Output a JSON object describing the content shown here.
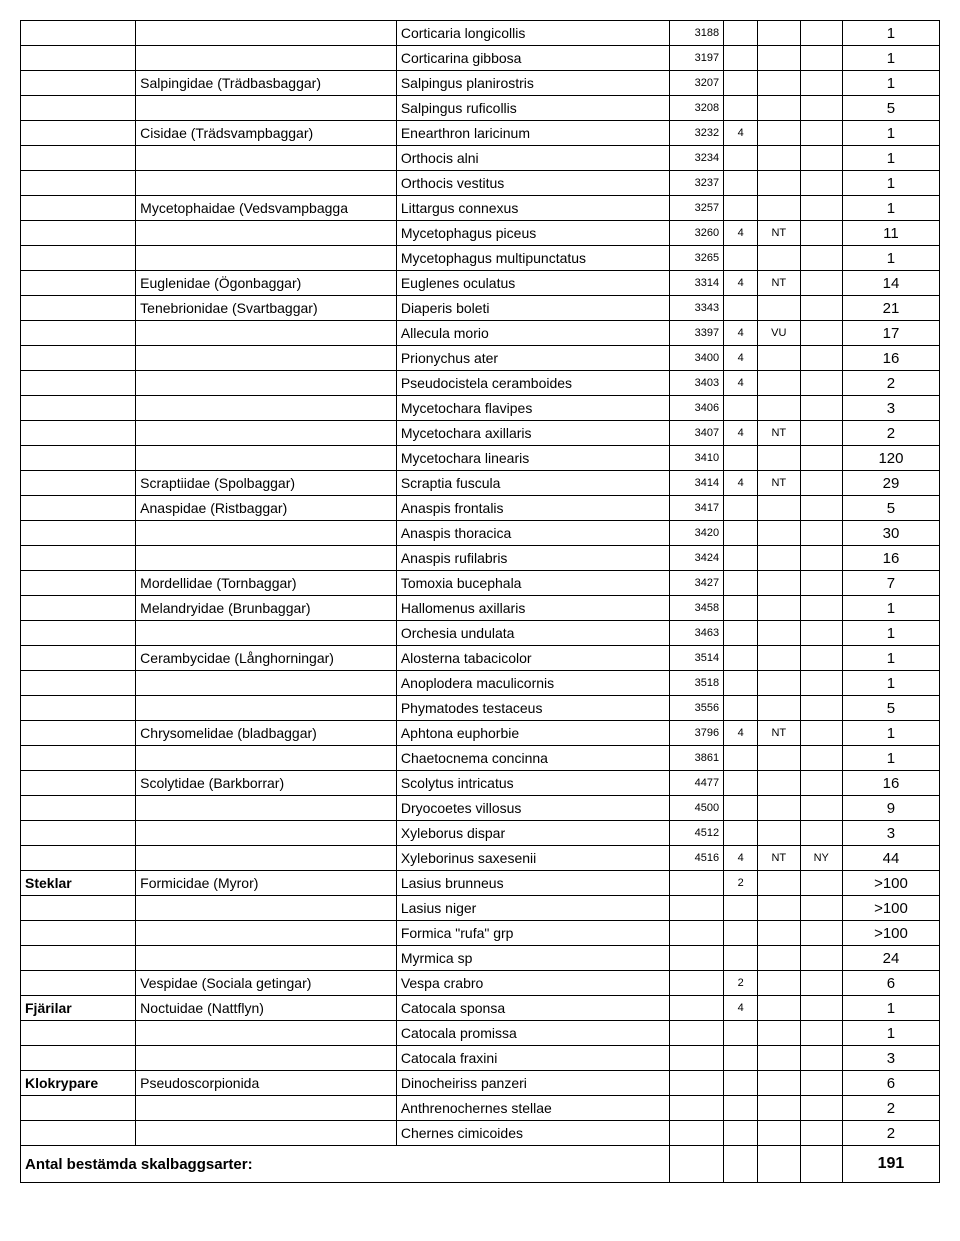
{
  "rows": [
    {
      "order": "",
      "family": "",
      "species": "Corticaria longicollis",
      "code": "3188",
      "c5": "",
      "c6": "",
      "c7": "",
      "count": "1"
    },
    {
      "order": "",
      "family": "",
      "species": "Corticarina gibbosa",
      "code": "3197",
      "c5": "",
      "c6": "",
      "c7": "",
      "count": "1"
    },
    {
      "order": "",
      "family": "Salpingidae (Trädbasbaggar)",
      "species": "Salpingus planirostris",
      "code": "3207",
      "c5": "",
      "c6": "",
      "c7": "",
      "count": "1"
    },
    {
      "order": "",
      "family": "",
      "species": "Salpingus ruficollis",
      "code": "3208",
      "c5": "",
      "c6": "",
      "c7": "",
      "count": "5"
    },
    {
      "order": "",
      "family": "Cisidae (Trädsvampbaggar)",
      "species": "Enearthron laricinum",
      "code": "3232",
      "c5": "4",
      "c6": "",
      "c7": "",
      "count": "1"
    },
    {
      "order": "",
      "family": "",
      "species": "Orthocis alni",
      "code": "3234",
      "c5": "",
      "c6": "",
      "c7": "",
      "count": "1"
    },
    {
      "order": "",
      "family": "",
      "species": "Orthocis vestitus",
      "code": "3237",
      "c5": "",
      "c6": "",
      "c7": "",
      "count": "1"
    },
    {
      "order": "",
      "family": "Mycetophaidae (Vedsvampbagga",
      "species": "Littargus connexus",
      "code": "3257",
      "c5": "",
      "c6": "",
      "c7": "",
      "count": "1"
    },
    {
      "order": "",
      "family": "",
      "species": "Mycetophagus piceus",
      "code": "3260",
      "c5": "4",
      "c6": "NT",
      "c7": "",
      "count": "11"
    },
    {
      "order": "",
      "family": "",
      "species": "Mycetophagus multipunctatus",
      "code": "3265",
      "c5": "",
      "c6": "",
      "c7": "",
      "count": "1"
    },
    {
      "order": "",
      "family": "Euglenidae (Ögonbaggar)",
      "species": "Euglenes oculatus",
      "code": "3314",
      "c5": "4",
      "c6": "NT",
      "c7": "",
      "count": "14"
    },
    {
      "order": "",
      "family": "Tenebrionidae (Svartbaggar)",
      "species": "Diaperis boleti",
      "code": "3343",
      "c5": "",
      "c6": "",
      "c7": "",
      "count": "21"
    },
    {
      "order": "",
      "family": "",
      "species": "Allecula morio",
      "code": "3397",
      "c5": "4",
      "c6": "VU",
      "c7": "",
      "count": "17"
    },
    {
      "order": "",
      "family": "",
      "species": "Prionychus ater",
      "code": "3400",
      "c5": "4",
      "c6": "",
      "c7": "",
      "count": "16"
    },
    {
      "order": "",
      "family": "",
      "species": "Pseudocistela ceramboides",
      "code": "3403",
      "c5": "4",
      "c6": "",
      "c7": "",
      "count": "2"
    },
    {
      "order": "",
      "family": "",
      "species": "Mycetochara flavipes",
      "code": "3406",
      "c5": "",
      "c6": "",
      "c7": "",
      "count": "3"
    },
    {
      "order": "",
      "family": "",
      "species": "Mycetochara axillaris",
      "code": "3407",
      "c5": "4",
      "c6": "NT",
      "c7": "",
      "count": "2"
    },
    {
      "order": "",
      "family": "",
      "species": "Mycetochara linearis",
      "code": "3410",
      "c5": "",
      "c6": "",
      "c7": "",
      "count": "120"
    },
    {
      "order": "",
      "family": "Scraptiidae (Spolbaggar)",
      "species": "Scraptia fuscula",
      "code": "3414",
      "c5": "4",
      "c6": "NT",
      "c7": "",
      "count": "29"
    },
    {
      "order": "",
      "family": "Anaspidae (Ristbaggar)",
      "species": "Anaspis frontalis",
      "code": "3417",
      "c5": "",
      "c6": "",
      "c7": "",
      "count": "5"
    },
    {
      "order": "",
      "family": "",
      "species": "Anaspis thoracica",
      "code": "3420",
      "c5": "",
      "c6": "",
      "c7": "",
      "count": "30"
    },
    {
      "order": "",
      "family": "",
      "species": "Anaspis rufilabris",
      "code": "3424",
      "c5": "",
      "c6": "",
      "c7": "",
      "count": "16"
    },
    {
      "order": "",
      "family": "Mordellidae (Tornbaggar)",
      "species": "Tomoxia bucephala",
      "code": "3427",
      "c5": "",
      "c6": "",
      "c7": "",
      "count": "7"
    },
    {
      "order": "",
      "family": "Melandryidae (Brunbaggar)",
      "species": "Hallomenus axillaris",
      "code": "3458",
      "c5": "",
      "c6": "",
      "c7": "",
      "count": "1"
    },
    {
      "order": "",
      "family": "",
      "species": "Orchesia undulata",
      "code": "3463",
      "c5": "",
      "c6": "",
      "c7": "",
      "count": "1"
    },
    {
      "order": "",
      "family": "Cerambycidae (Långhorningar)",
      "species": "Alosterna tabacicolor",
      "code": "3514",
      "c5": "",
      "c6": "",
      "c7": "",
      "count": "1"
    },
    {
      "order": "",
      "family": "",
      "species": "Anoplodera maculicornis",
      "code": "3518",
      "c5": "",
      "c6": "",
      "c7": "",
      "count": "1"
    },
    {
      "order": "",
      "family": "",
      "species": "Phymatodes testaceus",
      "code": "3556",
      "c5": "",
      "c6": "",
      "c7": "",
      "count": "5"
    },
    {
      "order": "",
      "family": "Chrysomelidae (bladbaggar)",
      "species": "Aphtona euphorbie",
      "code": "3796",
      "c5": "4",
      "c6": "NT",
      "c7": "",
      "count": "1"
    },
    {
      "order": "",
      "family": "",
      "species": "Chaetocnema concinna",
      "code": "3861",
      "c5": "",
      "c6": "",
      "c7": "",
      "count": "1"
    },
    {
      "order": "",
      "family": "Scolytidae (Barkborrar)",
      "species": "Scolytus intricatus",
      "code": "4477",
      "c5": "",
      "c6": "",
      "c7": "",
      "count": "16"
    },
    {
      "order": "",
      "family": "",
      "species": "Dryocoetes villosus",
      "code": "4500",
      "c5": "",
      "c6": "",
      "c7": "",
      "count": "9"
    },
    {
      "order": "",
      "family": "",
      "species": "Xyleborus dispar",
      "code": "4512",
      "c5": "",
      "c6": "",
      "c7": "",
      "count": "3"
    },
    {
      "order": "",
      "family": "",
      "species": "Xyleborinus saxesenii",
      "code": "4516",
      "c5": "4",
      "c6": "NT",
      "c7": "NY",
      "count": "44"
    },
    {
      "order": "Steklar",
      "family": "Formicidae (Myror)",
      "species": "Lasius brunneus",
      "code": "",
      "c5": "2",
      "c6": "",
      "c7": "",
      "count": ">100",
      "orderBold": true
    },
    {
      "order": "",
      "family": "",
      "species": "Lasius niger",
      "code": "",
      "c5": "",
      "c6": "",
      "c7": "",
      "count": ">100"
    },
    {
      "order": "",
      "family": "",
      "species": "Formica \"rufa\" grp",
      "code": "",
      "c5": "",
      "c6": "",
      "c7": "",
      "count": ">100"
    },
    {
      "order": "",
      "family": "",
      "species": "Myrmica sp",
      "code": "",
      "c5": "",
      "c6": "",
      "c7": "",
      "count": "24"
    },
    {
      "order": "",
      "family": "Vespidae (Sociala getingar)",
      "species": "Vespa crabro",
      "code": "",
      "c5": "2",
      "c6": "",
      "c7": "",
      "count": "6"
    },
    {
      "order": "Fjärilar",
      "family": "Noctuidae (Nattflyn)",
      "species": "Catocala sponsa",
      "code": "",
      "c5": "4",
      "c6": "",
      "c7": "",
      "count": "1",
      "orderBold": true
    },
    {
      "order": "",
      "family": "",
      "species": "Catocala promissa",
      "code": "",
      "c5": "",
      "c6": "",
      "c7": "",
      "count": "1"
    },
    {
      "order": "",
      "family": "",
      "species": "Catocala fraxini",
      "code": "",
      "c5": "",
      "c6": "",
      "c7": "",
      "count": "3"
    },
    {
      "order": "Klokrypare",
      "family": "Pseudoscorpionida",
      "species": "Dinocheiriss panzeri",
      "code": "",
      "c5": "",
      "c6": "",
      "c7": "",
      "count": "6",
      "orderBold": true
    },
    {
      "order": "",
      "family": "",
      "species": "Anthrenochernes stellae",
      "code": "",
      "c5": "",
      "c6": "",
      "c7": "",
      "count": "2"
    },
    {
      "order": "",
      "family": "",
      "species": "Chernes cimicoides",
      "code": "",
      "c5": "",
      "c6": "",
      "c7": "",
      "count": "2"
    }
  ],
  "total": {
    "label": "Antal bestämda skalbaggsarter:",
    "value": "191"
  }
}
